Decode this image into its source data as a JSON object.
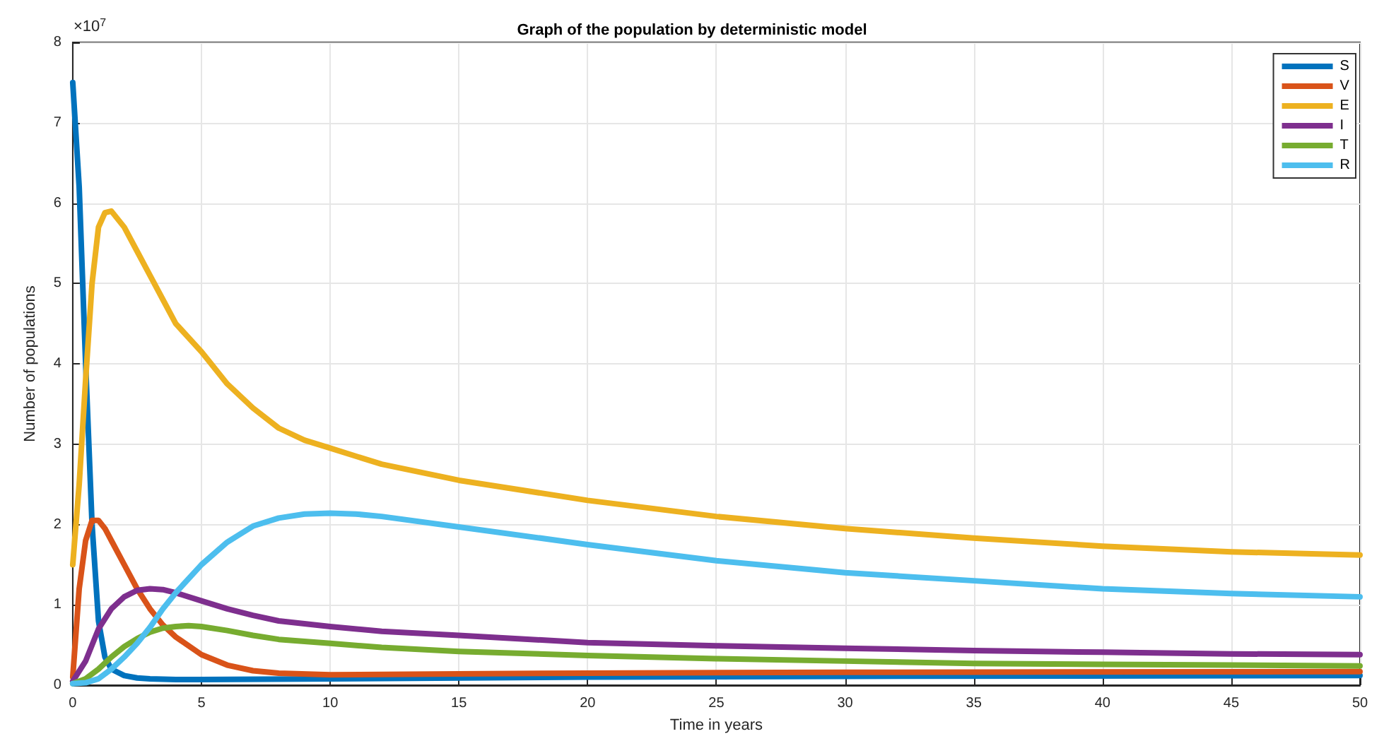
{
  "chart_data": {
    "type": "line",
    "title": "Graph of the population by deterministic model",
    "xlabel": "Time in years",
    "ylabel": "Number of populations",
    "annotations": [
      "×10$^{7}$"
    ],
    "xlim": [
      0,
      50
    ],
    "xticks": [
      0,
      5,
      10,
      15,
      20,
      25,
      30,
      35,
      40,
      45,
      50
    ],
    "ylim": [
      0,
      8
    ],
    "yticks": [
      0,
      1,
      2,
      3,
      4,
      5,
      6,
      7,
      8
    ],
    "grid": true,
    "legend": "top right",
    "marker": "none",
    "line_style": "solid",
    "series": [
      {
        "name": "S",
        "color": "#0072bd",
        "x": [
          0,
          0.25,
          0.5,
          0.75,
          1,
          1.25,
          1.5,
          2,
          2.5,
          3,
          4,
          5,
          10,
          20,
          30,
          50
        ],
        "values": [
          7.5,
          6.2,
          4.0,
          2.0,
          0.8,
          0.35,
          0.2,
          0.12,
          0.09,
          0.08,
          0.07,
          0.07,
          0.08,
          0.1,
          0.11,
          0.12
        ]
      },
      {
        "name": "V",
        "color": "#d95319",
        "x": [
          0,
          0.25,
          0.5,
          0.75,
          1,
          1.25,
          1.5,
          2,
          2.5,
          3,
          3.5,
          4,
          5,
          6,
          7,
          8,
          10,
          15,
          20,
          30,
          50
        ],
        "values": [
          0.1,
          1.2,
          1.8,
          2.05,
          2.05,
          1.95,
          1.8,
          1.5,
          1.2,
          0.95,
          0.75,
          0.6,
          0.38,
          0.25,
          0.18,
          0.15,
          0.13,
          0.14,
          0.15,
          0.16,
          0.17
        ]
      },
      {
        "name": "E",
        "color": "#edb120",
        "x": [
          0,
          0.25,
          0.5,
          0.75,
          1,
          1.25,
          1.5,
          2,
          2.5,
          3,
          3.5,
          4,
          5,
          6,
          7,
          8,
          9,
          10,
          12,
          15,
          20,
          25,
          30,
          35,
          40,
          45,
          50
        ],
        "values": [
          1.5,
          2.5,
          3.8,
          5.0,
          5.7,
          5.88,
          5.9,
          5.7,
          5.4,
          5.1,
          4.8,
          4.5,
          4.15,
          3.75,
          3.45,
          3.2,
          3.05,
          2.95,
          2.75,
          2.55,
          2.3,
          2.1,
          1.95,
          1.83,
          1.73,
          1.66,
          1.62
        ]
      },
      {
        "name": "I",
        "color": "#7e2f8e",
        "x": [
          0,
          0.5,
          1,
          1.5,
          2,
          2.5,
          3,
          3.5,
          4,
          5,
          6,
          7,
          8,
          10,
          12,
          15,
          20,
          25,
          30,
          35,
          40,
          45,
          50
        ],
        "values": [
          0.05,
          0.3,
          0.7,
          0.95,
          1.1,
          1.18,
          1.2,
          1.19,
          1.15,
          1.05,
          0.95,
          0.87,
          0.8,
          0.73,
          0.67,
          0.62,
          0.53,
          0.49,
          0.46,
          0.43,
          0.41,
          0.39,
          0.38
        ]
      },
      {
        "name": "T",
        "color": "#77ac30",
        "x": [
          0,
          0.5,
          1,
          1.5,
          2,
          2.5,
          3,
          3.5,
          4,
          4.5,
          5,
          6,
          7,
          8,
          10,
          12,
          15,
          20,
          25,
          30,
          35,
          40,
          45,
          50
        ],
        "values": [
          0.02,
          0.08,
          0.2,
          0.35,
          0.48,
          0.58,
          0.66,
          0.71,
          0.73,
          0.74,
          0.73,
          0.68,
          0.62,
          0.57,
          0.52,
          0.47,
          0.42,
          0.37,
          0.33,
          0.3,
          0.27,
          0.26,
          0.25,
          0.24
        ]
      },
      {
        "name": "R",
        "color": "#4dbeee",
        "x": [
          0,
          0.5,
          1,
          1.5,
          2,
          2.5,
          3,
          3.5,
          4,
          5,
          6,
          7,
          8,
          9,
          10,
          11,
          12,
          15,
          20,
          25,
          30,
          35,
          40,
          45,
          50
        ],
        "values": [
          0.02,
          0.03,
          0.08,
          0.2,
          0.35,
          0.52,
          0.72,
          0.95,
          1.15,
          1.5,
          1.78,
          1.98,
          2.08,
          2.13,
          2.14,
          2.13,
          2.1,
          1.97,
          1.75,
          1.55,
          1.4,
          1.3,
          1.2,
          1.14,
          1.1
        ]
      }
    ]
  }
}
